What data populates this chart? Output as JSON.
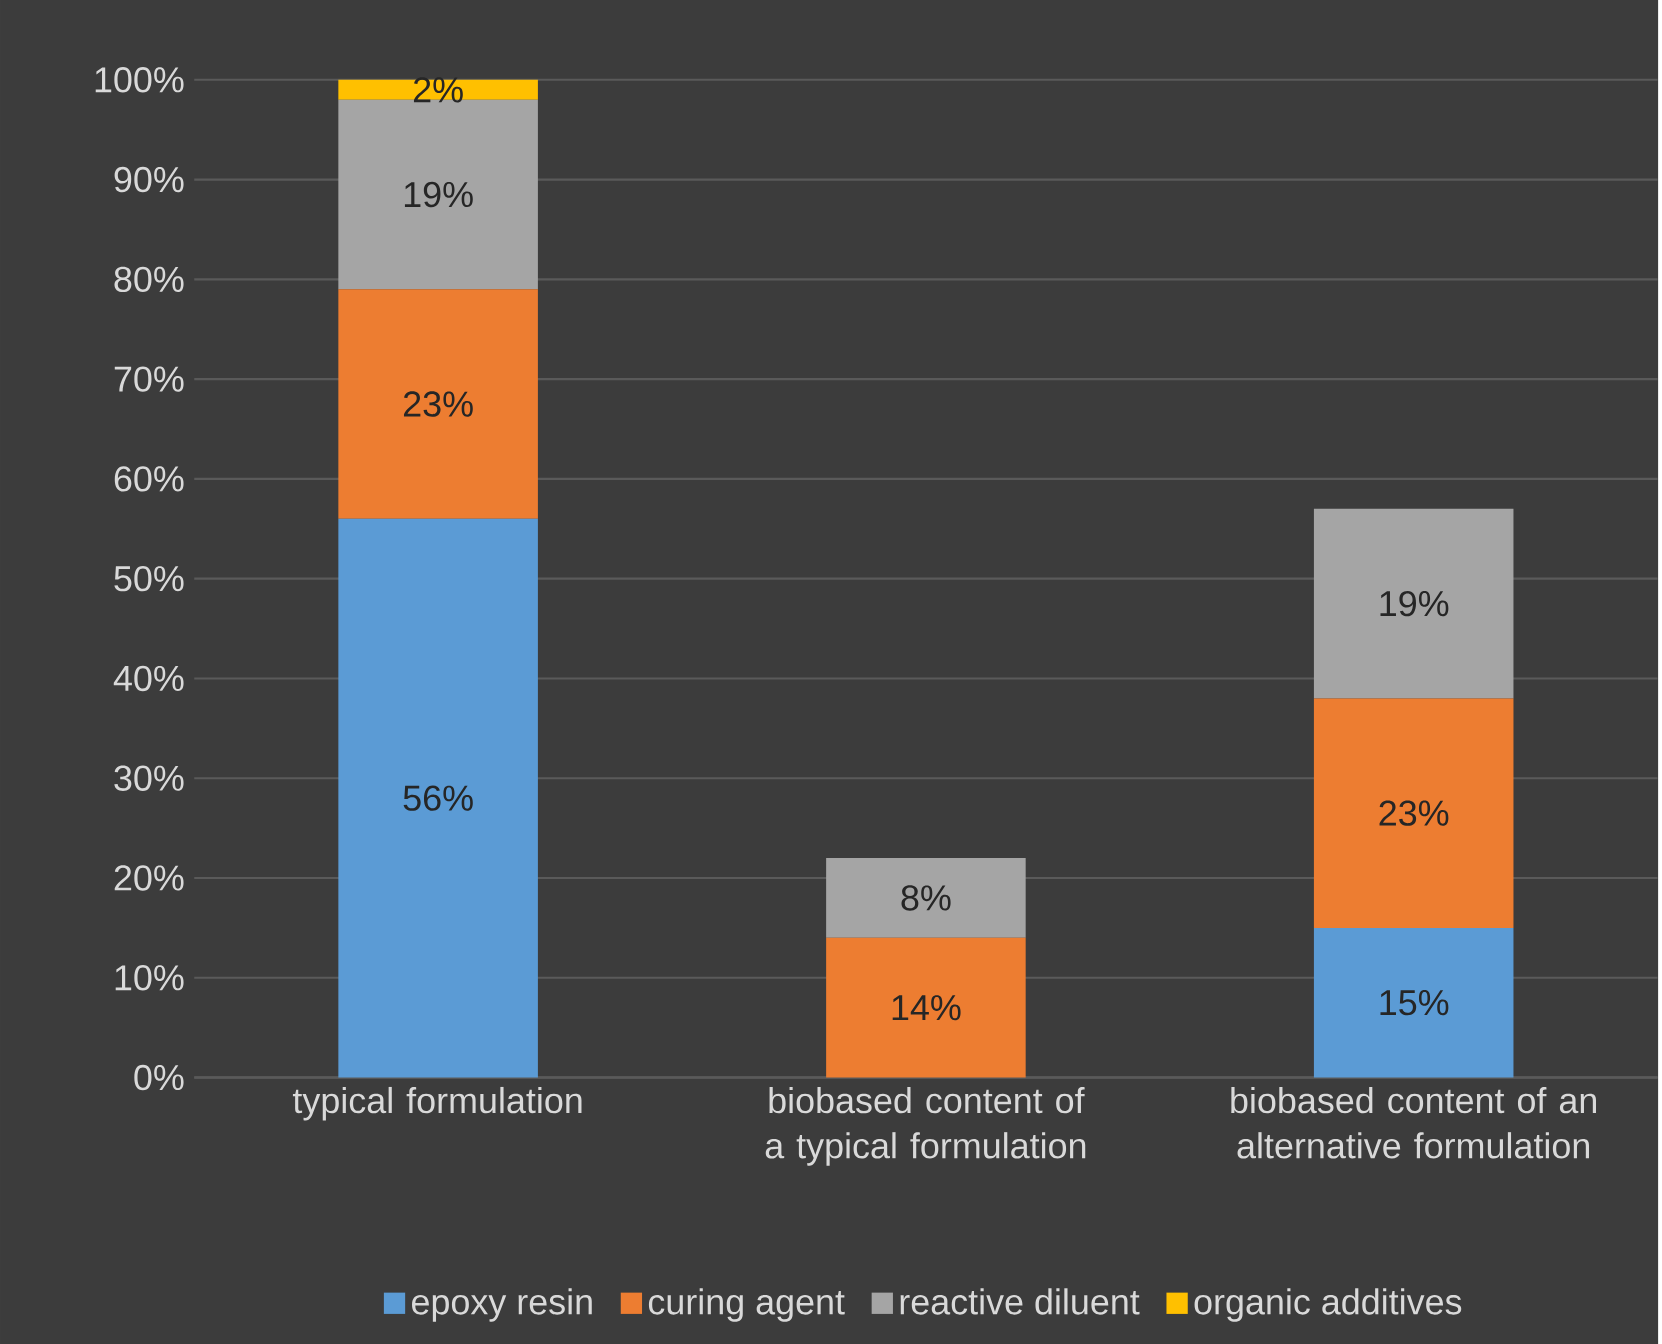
{
  "chart_data": {
    "type": "bar",
    "stacked": true,
    "categories": [
      "typical formulation",
      "biobased content of a typical formulation",
      "biobased content of an alternative formulation"
    ],
    "series": [
      {
        "name": "epoxy resin",
        "color": "#5b9bd5",
        "values": [
          56,
          0,
          15
        ],
        "value_labels": [
          "56%",
          null,
          "15%"
        ]
      },
      {
        "name": "curing agent",
        "color": "#ed7d31",
        "values": [
          23,
          14,
          23
        ],
        "value_labels": [
          "23%",
          "14%",
          "23%"
        ]
      },
      {
        "name": "reactive diluent",
        "color": "#a5a5a5",
        "values": [
          19,
          8,
          19
        ],
        "value_labels": [
          "19%",
          "8%",
          "19%"
        ]
      },
      {
        "name": "organic additives",
        "color": "#ffc000",
        "values": [
          2,
          0,
          0
        ],
        "value_labels": [
          "2%",
          null,
          null
        ]
      }
    ],
    "ylim": [
      0,
      100
    ],
    "yticks": [
      {
        "value": 0,
        "label": "0%"
      },
      {
        "value": 10,
        "label": "10%"
      },
      {
        "value": 20,
        "label": "20%"
      },
      {
        "value": 30,
        "label": "30%"
      },
      {
        "value": 40,
        "label": "40%"
      },
      {
        "value": 50,
        "label": "50%"
      },
      {
        "value": 60,
        "label": "60%"
      },
      {
        "value": 70,
        "label": "70%"
      },
      {
        "value": 80,
        "label": "80%"
      },
      {
        "value": 90,
        "label": "90%"
      },
      {
        "value": 100,
        "label": "100%"
      }
    ],
    "grid": "y",
    "legend": "bottom"
  }
}
